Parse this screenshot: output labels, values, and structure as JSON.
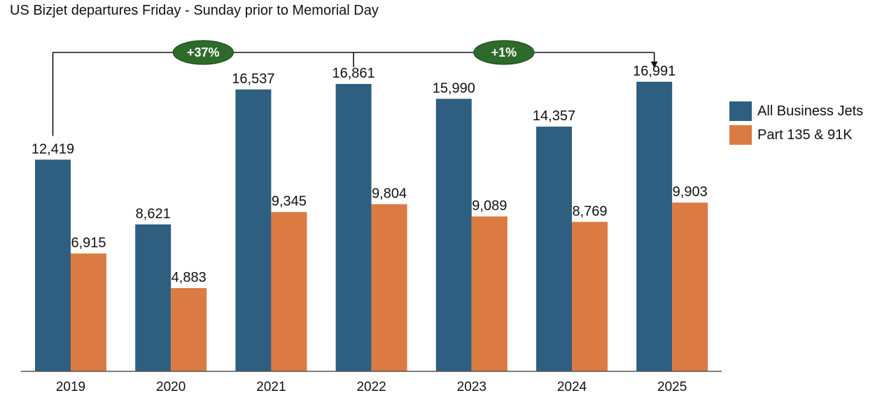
{
  "title": "US Bizjet departures Friday - Sunday prior to Memorial Day",
  "chart_data": {
    "type": "bar",
    "title": "US Bizjet departures Friday - Sunday prior to Memorial Day",
    "categories": [
      "2019",
      "2020",
      "2021",
      "2022",
      "2023",
      "2024",
      "2025"
    ],
    "series": [
      {
        "name": "All Business Jets",
        "values": [
          12419,
          8621,
          16537,
          16861,
          15990,
          14357,
          16991
        ],
        "labels": [
          "12,419",
          "8,621",
          "16,537",
          "16,861",
          "15,990",
          "14,357",
          "16,991"
        ],
        "color": "#2e5f80"
      },
      {
        "name": "Part 135 & 91K",
        "values": [
          6915,
          4883,
          9345,
          9804,
          9089,
          8769,
          9903
        ],
        "labels": [
          "6,915",
          "4,883",
          "9,345",
          "9,804",
          "9,089",
          "8,769",
          "9,903"
        ],
        "color": "#db7a42"
      }
    ],
    "ylim": [
      0,
      17000
    ],
    "annotations": [
      {
        "text": "+37%",
        "from": "2019",
        "to": "2025",
        "color": "#2e6b2b"
      },
      {
        "text": "+1%",
        "from": "2022",
        "to": "2025",
        "color": "#2e6b2b"
      }
    ],
    "legend_position": "right",
    "grid": false
  }
}
